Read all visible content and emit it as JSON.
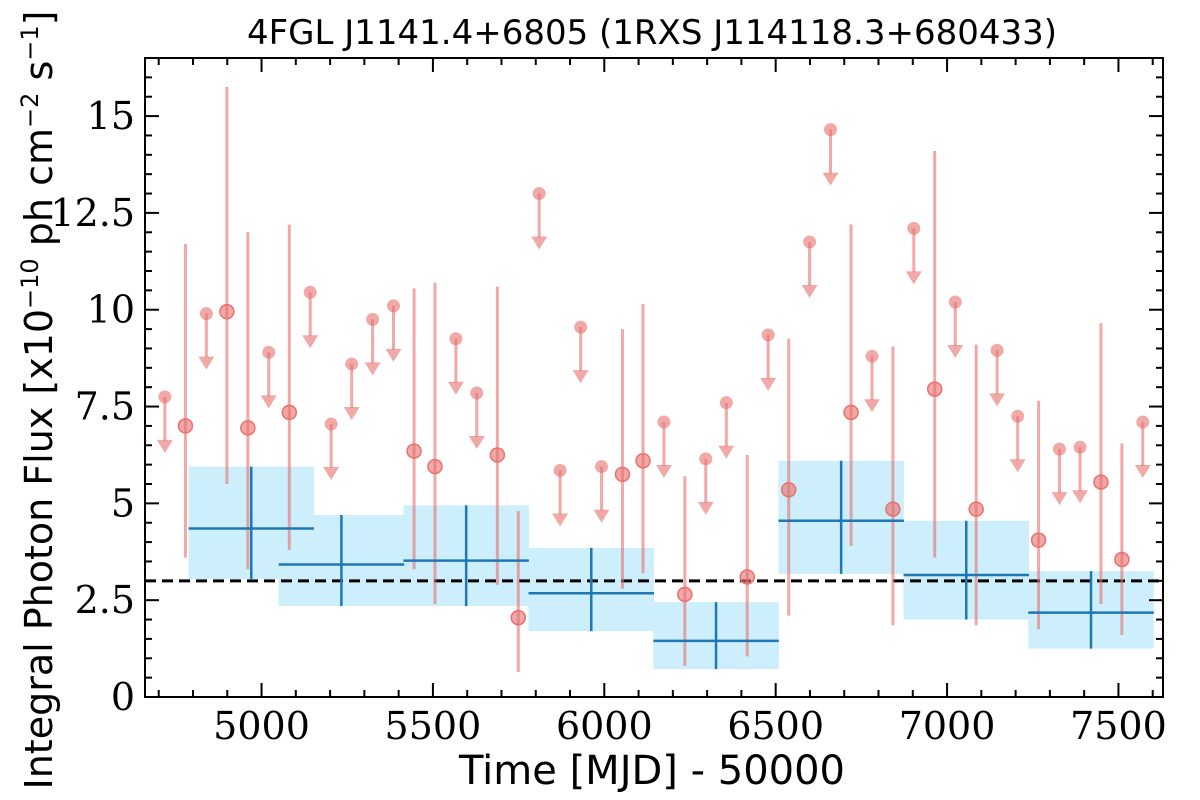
{
  "chart_data": {
    "type": "scatter",
    "title": "4FGL J1141.4+6805 (1RXS J114118.3+680433)",
    "xlabel": "Time [MJD] - 50000",
    "ylabel_parts": {
      "before": "Integral Photon Flux [x10",
      "exp1": "−10",
      "middle": " ph cm",
      "exp2": "−2",
      "middle2": " s",
      "exp3": "−1",
      "after": "]"
    },
    "xlim": [
      4660,
      7630
    ],
    "ylim": [
      0,
      16.5
    ],
    "xticks": [
      5000,
      5500,
      6000,
      6500,
      7000,
      7500
    ],
    "yticks": [
      0,
      2.5,
      5,
      7.5,
      10,
      12.5,
      15
    ],
    "ytick_labels": [
      "0",
      "2.5",
      "5",
      "7.5",
      "10",
      "12.5",
      "15"
    ],
    "reference_line": {
      "y": 3.0,
      "style": "dashed",
      "color": "#000000"
    },
    "colors": {
      "points": "#e8706e",
      "bins": "#1f77b4",
      "band": "#cdeefb"
    },
    "binned_series": [
      {
        "x": 4970,
        "x_err": 183,
        "y": 4.35,
        "y_low": 3.05,
        "y_high": 5.95
      },
      {
        "x": 5233,
        "x_err": 183,
        "y": 3.42,
        "y_low": 2.35,
        "y_high": 4.7
      },
      {
        "x": 5597,
        "x_err": 183,
        "y": 3.52,
        "y_low": 2.35,
        "y_high": 4.95
      },
      {
        "x": 5962,
        "x_err": 183,
        "y": 2.68,
        "y_low": 1.7,
        "y_high": 3.85
      },
      {
        "x": 6326,
        "x_err": 183,
        "y": 1.45,
        "y_low": 0.72,
        "y_high": 2.45
      },
      {
        "x": 6691,
        "x_err": 183,
        "y": 4.55,
        "y_low": 3.18,
        "y_high": 6.1
      },
      {
        "x": 7056,
        "x_err": 183,
        "y": 3.15,
        "y_low": 2.0,
        "y_high": 4.55
      },
      {
        "x": 7420,
        "x_err": 183,
        "y": 2.18,
        "y_low": 1.25,
        "y_high": 3.25
      }
    ],
    "detections": [
      {
        "x": 4778,
        "y": 7.0,
        "y_low": 3.6,
        "y_high": 11.7
      },
      {
        "x": 4899,
        "y": 9.95,
        "y_low": 5.5,
        "y_high": 15.75
      },
      {
        "x": 4960,
        "y": 6.95,
        "y_low": 3.3,
        "y_high": 12.0
      },
      {
        "x": 5081,
        "y": 7.35,
        "y_low": 3.8,
        "y_high": 12.2
      },
      {
        "x": 5445,
        "y": 6.35,
        "y_low": 3.3,
        "y_high": 10.55
      },
      {
        "x": 5506,
        "y": 5.95,
        "y_low": 2.4,
        "y_high": 10.7
      },
      {
        "x": 5688,
        "y": 6.25,
        "y_low": 2.9,
        "y_high": 10.6
      },
      {
        "x": 5749,
        "y": 2.05,
        "y_low": 0.65,
        "y_high": 4.8
      },
      {
        "x": 6053,
        "y": 5.75,
        "y_low": 2.8,
        "y_high": 9.5
      },
      {
        "x": 6113,
        "y": 6.1,
        "y_low": 3.2,
        "y_high": 10.15
      },
      {
        "x": 6235,
        "y": 2.65,
        "y_low": 0.8,
        "y_high": 5.7
      },
      {
        "x": 6417,
        "y": 3.1,
        "y_low": 1.05,
        "y_high": 6.25
      },
      {
        "x": 6538,
        "y": 5.35,
        "y_low": 2.1,
        "y_high": 9.25
      },
      {
        "x": 6720,
        "y": 7.35,
        "y_low": 3.9,
        "y_high": 12.2
      },
      {
        "x": 6842,
        "y": 4.85,
        "y_low": 1.85,
        "y_high": 9.05
      },
      {
        "x": 6964,
        "y": 7.95,
        "y_low": 3.6,
        "y_high": 14.1
      },
      {
        "x": 7085,
        "y": 4.85,
        "y_low": 1.85,
        "y_high": 9.1
      },
      {
        "x": 7267,
        "y": 4.05,
        "y_low": 1.75,
        "y_high": 7.65
      },
      {
        "x": 7449,
        "y": 5.55,
        "y_low": 2.4,
        "y_high": 9.65
      },
      {
        "x": 7510,
        "y": 3.55,
        "y_low": 1.6,
        "y_high": 6.55
      }
    ],
    "upper_limits": [
      {
        "x": 4718,
        "y": 7.75
      },
      {
        "x": 4839,
        "y": 9.9
      },
      {
        "x": 5021,
        "y": 8.9
      },
      {
        "x": 5142,
        "y": 10.45
      },
      {
        "x": 5203,
        "y": 7.05
      },
      {
        "x": 5263,
        "y": 8.6
      },
      {
        "x": 5324,
        "y": 9.75
      },
      {
        "x": 5385,
        "y": 10.1
      },
      {
        "x": 5567,
        "y": 9.25
      },
      {
        "x": 5628,
        "y": 7.85
      },
      {
        "x": 5810,
        "y": 13.0
      },
      {
        "x": 5871,
        "y": 5.85
      },
      {
        "x": 5931,
        "y": 9.55
      },
      {
        "x": 5992,
        "y": 5.95
      },
      {
        "x": 6174,
        "y": 7.1
      },
      {
        "x": 6296,
        "y": 6.15
      },
      {
        "x": 6356,
        "y": 7.6
      },
      {
        "x": 6478,
        "y": 9.35
      },
      {
        "x": 6599,
        "y": 11.75
      },
      {
        "x": 6660,
        "y": 14.65
      },
      {
        "x": 6781,
        "y": 8.8
      },
      {
        "x": 6903,
        "y": 12.1
      },
      {
        "x": 7024,
        "y": 10.2
      },
      {
        "x": 7146,
        "y": 8.95
      },
      {
        "x": 7206,
        "y": 7.25
      },
      {
        "x": 7328,
        "y": 6.4
      },
      {
        "x": 7388,
        "y": 6.45
      },
      {
        "x": 7571,
        "y": 7.1
      }
    ]
  }
}
